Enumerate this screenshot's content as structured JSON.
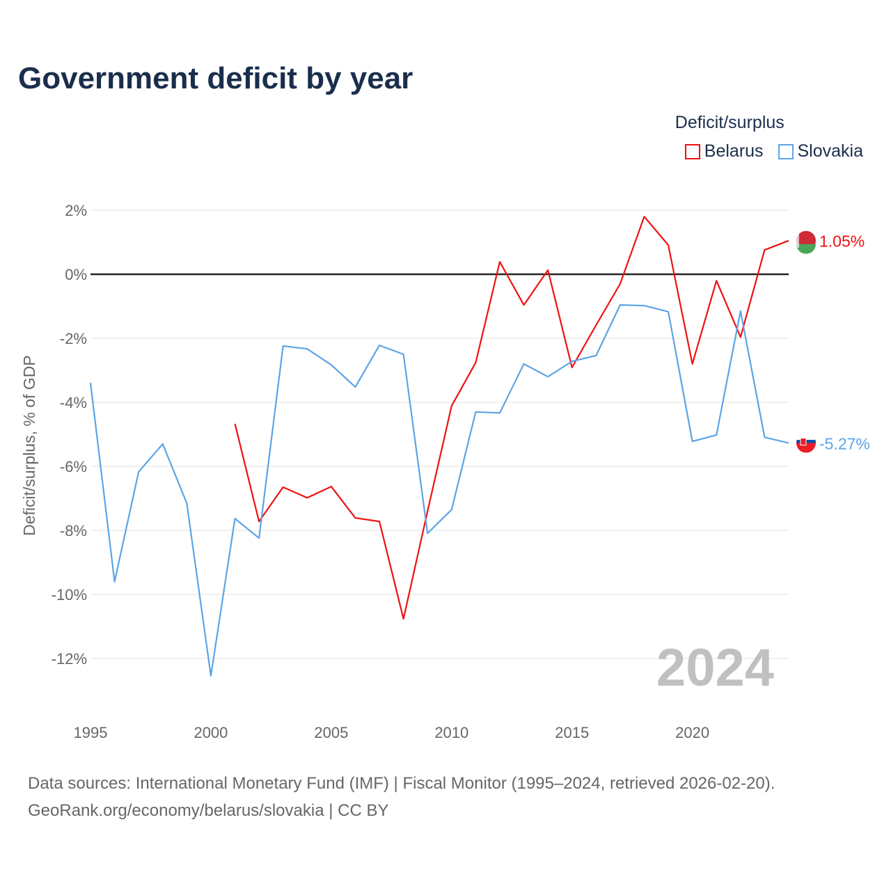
{
  "title": "Government deficit by year",
  "source_line1": "Data sources: International Monetary Fund (IMF) | Fiscal Monitor (1995–2024, retrieved 2026-02-20).",
  "source_line2": "GeoRank.org/economy/belarus/slovakia | CC BY",
  "year_watermark": "2024",
  "chart_data": {
    "type": "line",
    "title": "Government deficit by year",
    "xlabel": "",
    "ylabel": "Deficit/surplus, % of GDP",
    "legend_title": "Deficit/surplus",
    "legend_position": "top-right",
    "xlim": [
      1995,
      2024
    ],
    "ylim": [
      -14,
      2.5
    ],
    "x_ticks": [
      1995,
      2000,
      2005,
      2010,
      2015,
      2020
    ],
    "x_tick_labels": [
      "1995",
      "2000",
      "2005",
      "2010",
      "2015",
      "2020"
    ],
    "y_ticks": [
      2,
      0,
      -2,
      -4,
      -6,
      -8,
      -10,
      -12
    ],
    "y_tick_labels": [
      "2%",
      "0%",
      "-2%",
      "-4%",
      "-6%",
      "-8%",
      "-10%",
      "-12%"
    ],
    "grid": true,
    "series": [
      {
        "name": "Belarus",
        "color": "#ee1111",
        "end_label": "1.05%",
        "x": [
          2001,
          2002,
          2003,
          2004,
          2005,
          2006,
          2007,
          2008,
          2009,
          2010,
          2011,
          2012,
          2013,
          2014,
          2015,
          2016,
          2017,
          2018,
          2019,
          2020,
          2021,
          2022,
          2023,
          2024
        ],
        "values": [
          -4.67,
          -7.72,
          -6.65,
          -6.98,
          -6.63,
          -7.61,
          -7.72,
          -10.76,
          -7.4,
          -4.11,
          -2.76,
          0.39,
          -0.96,
          0.13,
          -2.91,
          -1.59,
          -0.3,
          1.8,
          0.91,
          -2.8,
          -0.2,
          -1.96,
          0.76,
          1.05
        ]
      },
      {
        "name": "Slovakia",
        "color": "#5ba4e6",
        "end_label": "-5.27%",
        "x": [
          1995,
          1996,
          1997,
          1998,
          1999,
          2000,
          2001,
          2002,
          2003,
          2004,
          2005,
          2006,
          2007,
          2008,
          2009,
          2010,
          2011,
          2012,
          2013,
          2014,
          2015,
          2016,
          2017,
          2018,
          2019,
          2020,
          2021,
          2022,
          2023,
          2024
        ],
        "values": [
          -3.39,
          -9.6,
          -6.17,
          -5.3,
          -7.15,
          -12.54,
          -7.63,
          -8.24,
          -2.24,
          -2.33,
          -2.83,
          -3.52,
          -2.22,
          -2.5,
          -8.09,
          -7.35,
          -4.3,
          -4.33,
          -2.8,
          -3.2,
          -2.72,
          -2.54,
          -0.96,
          -0.98,
          -1.17,
          -5.22,
          -5.02,
          -1.15,
          -5.09,
          -5.27
        ]
      }
    ]
  }
}
